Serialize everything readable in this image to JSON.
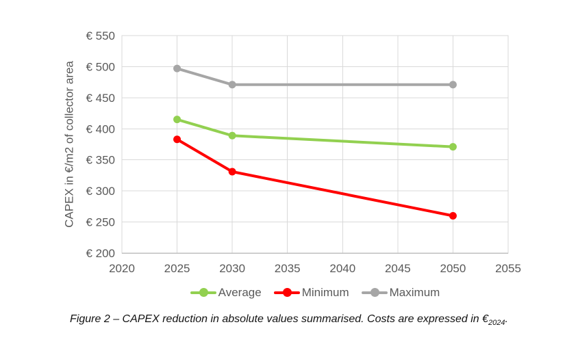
{
  "figure": {
    "caption": {
      "text": "Figure 2 – CAPEX reduction in absolute values summarised. Costs are expressed in €",
      "subscript": "2024",
      "suffix": "."
    }
  },
  "chart_data": {
    "type": "line",
    "title": "",
    "x": [
      2025,
      2030,
      2050
    ],
    "series": [
      {
        "name": "Average",
        "color": "#92D050",
        "values": [
          415,
          389,
          371
        ]
      },
      {
        "name": "Minimum",
        "color": "#FF0000",
        "values": [
          383,
          331,
          260
        ]
      },
      {
        "name": "Maximum",
        "color": "#A6A6A6",
        "values": [
          497,
          471,
          471
        ]
      }
    ],
    "xlabel": "",
    "ylabel": "CAPEX in €/m2 of collector area",
    "xlim": [
      2020,
      2055
    ],
    "ylim": [
      200,
      550
    ],
    "x_ticks": [
      2020,
      2025,
      2030,
      2035,
      2040,
      2045,
      2050,
      2055
    ],
    "y_ticks": [
      200,
      250,
      300,
      350,
      400,
      450,
      500,
      550
    ],
    "y_tick_prefix": "€ ",
    "grid": true,
    "legend_position": "bottom",
    "legend_labels": [
      "Average",
      "Minimum",
      "Maximum"
    ],
    "colors": {
      "gridline": "#D9D9D9",
      "plot_border": "#D9D9D9",
      "axis_line": "#BFBFBF",
      "tick_text": "#595959"
    },
    "marker": "circle",
    "line_width": 4,
    "marker_radius": 5.5
  }
}
